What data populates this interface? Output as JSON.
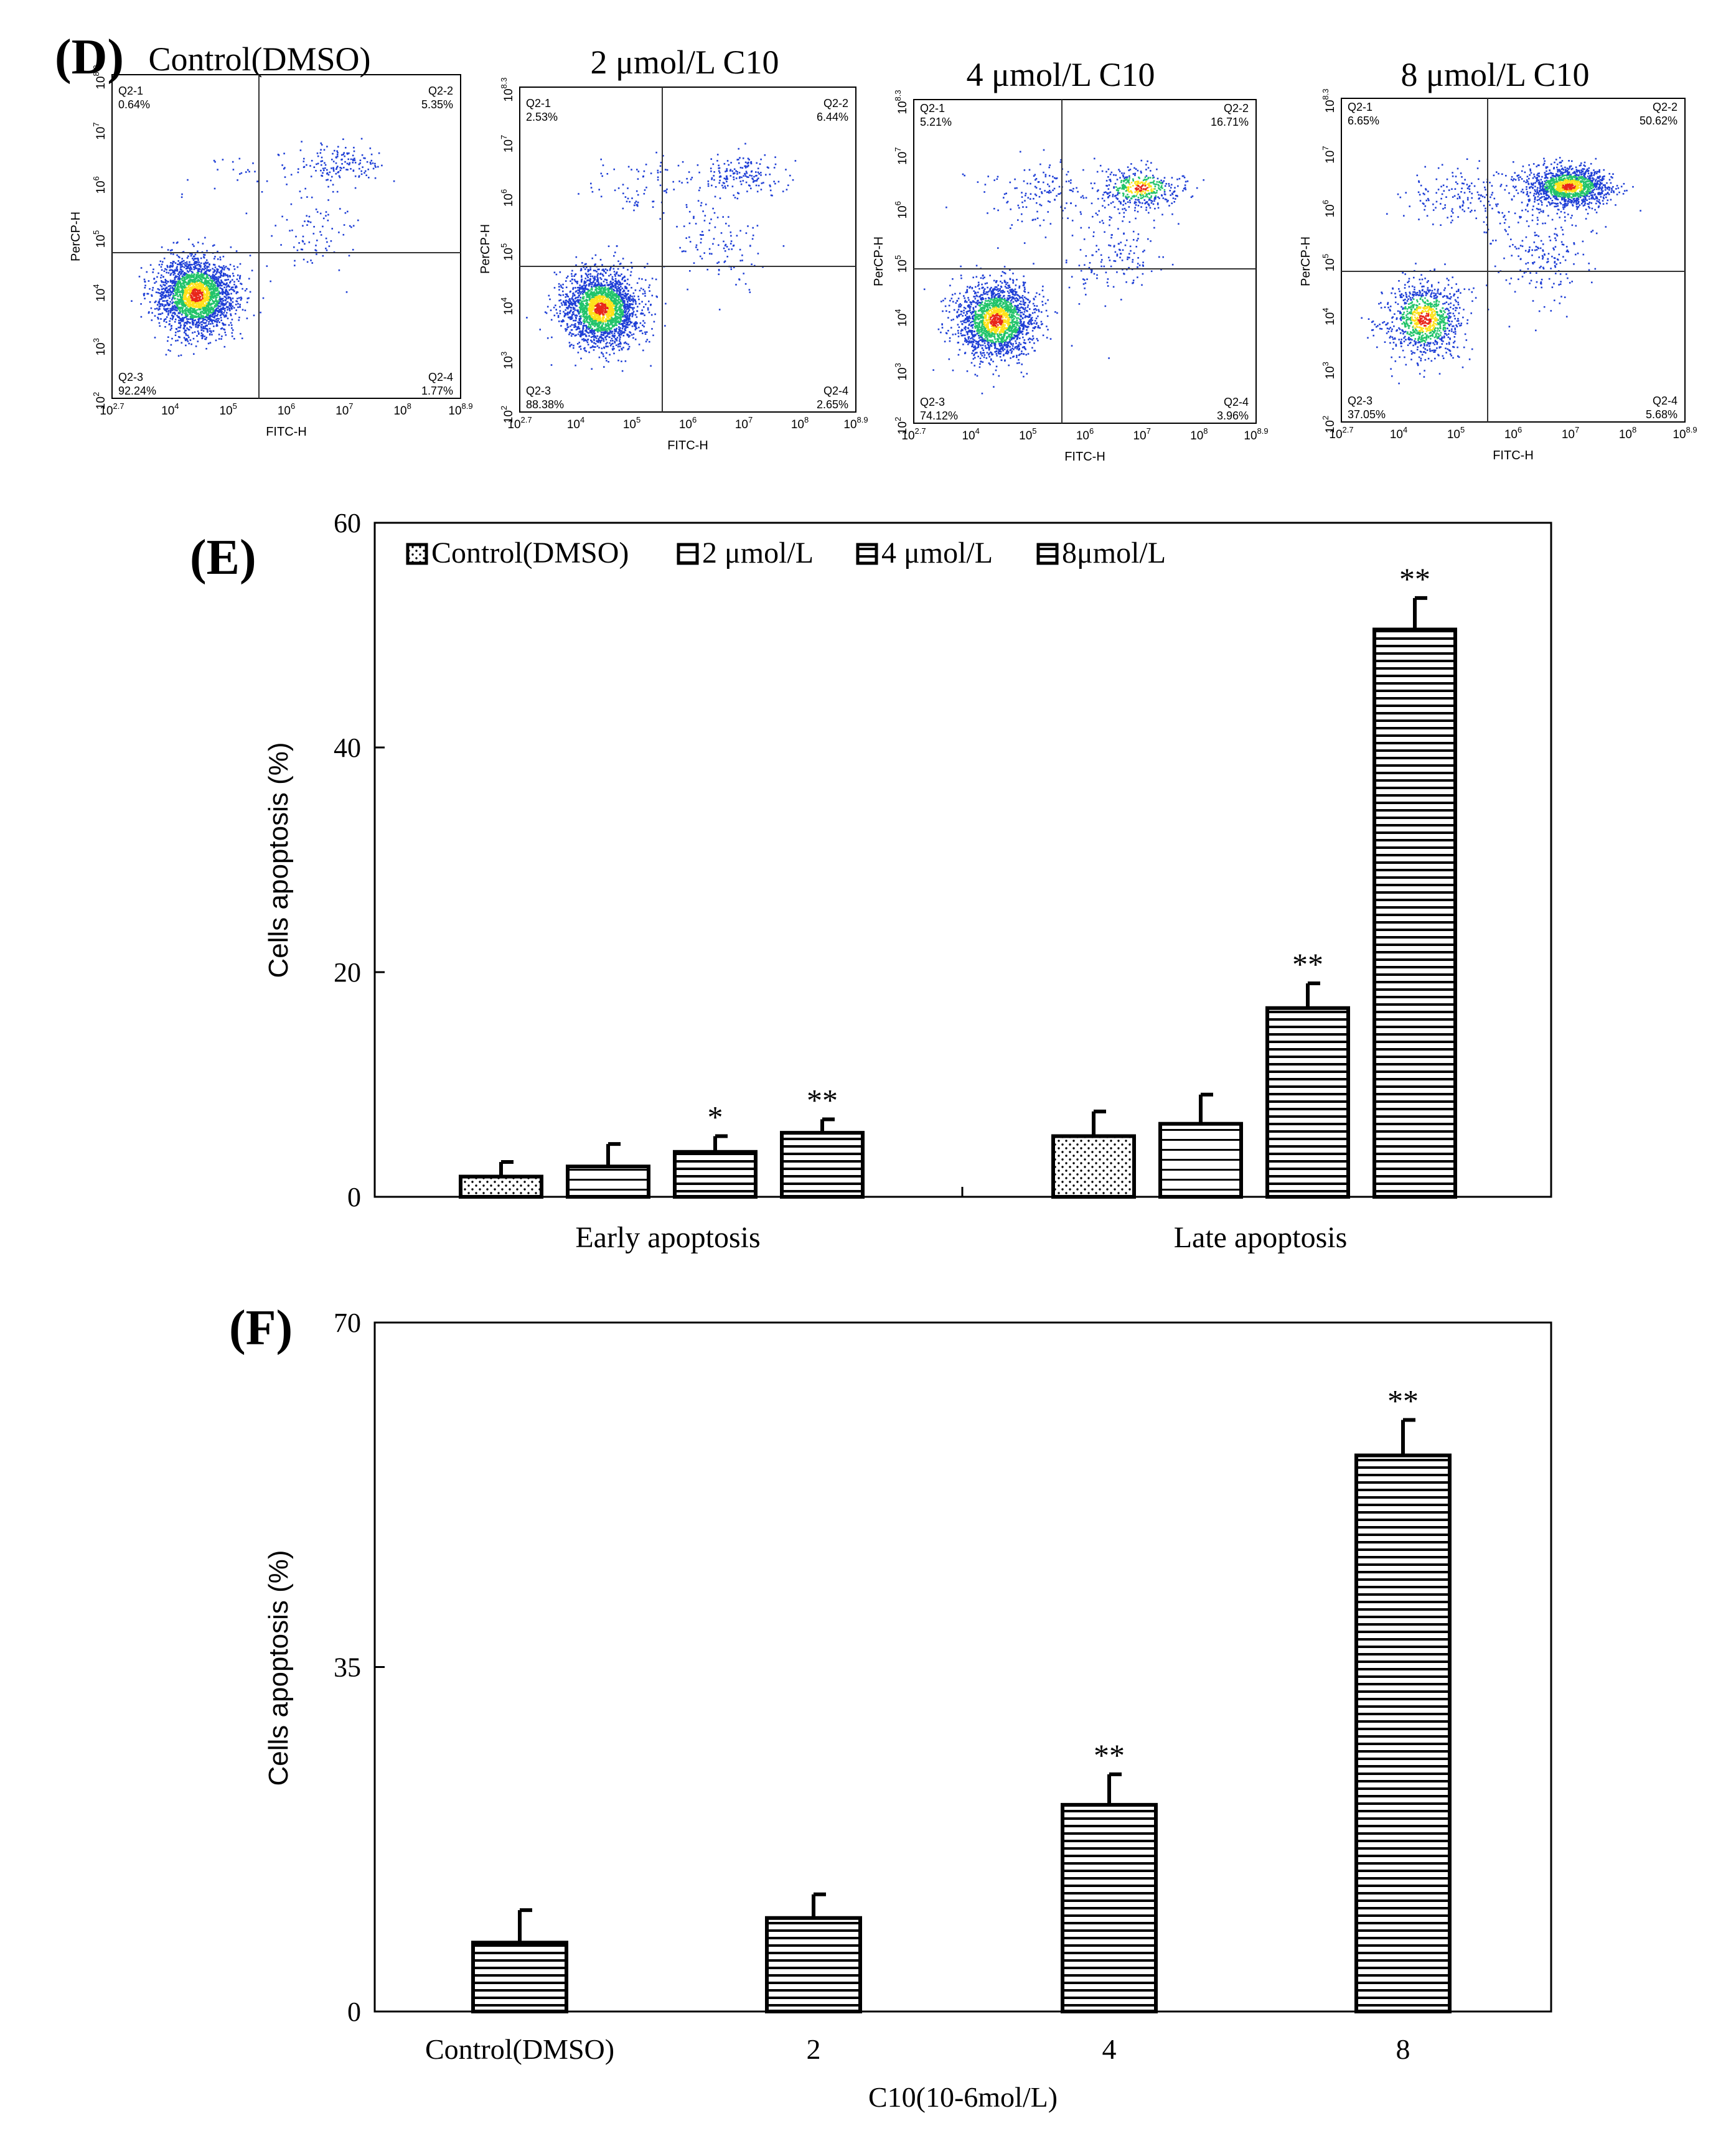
{
  "colors": {
    "axis": "#000000",
    "quadrant": "#333333",
    "dot_low": "#1f3fd6",
    "dot_mid": "#22c46a",
    "dot_high": "#ffe11a",
    "dot_peak": "#e8261a"
  },
  "panel_d": {
    "label": "(D)",
    "x_axis_label": "FITC-H",
    "y_axis_label": "PerCP-H",
    "x_ticks": [
      "10^2.7",
      "10^4",
      "10^5",
      "10^6",
      "10^7",
      "10^8",
      "10^8.9"
    ],
    "y_ticks": [
      "10^2",
      "10^3",
      "10^4",
      "10^5",
      "10^6",
      "10^7",
      "10^8.3"
    ],
    "plots": [
      {
        "title": "Control(DMSO)",
        "q1": "Q2-1",
        "q1_val": "0.64%",
        "q2": "Q2-2",
        "q2_val": "5.35%",
        "q3": "Q2-3",
        "q3_val": "92.24%",
        "q4": "Q2-4",
        "q4_val": "1.77%"
      },
      {
        "title": "2 μmol/L C10",
        "q1": "Q2-1",
        "q1_val": "2.53%",
        "q2": "Q2-2",
        "q2_val": "6.44%",
        "q3": "Q2-3",
        "q3_val": "88.38%",
        "q4": "Q2-4",
        "q4_val": "2.65%"
      },
      {
        "title": "4 μmol/L C10",
        "q1": "Q2-1",
        "q1_val": "5.21%",
        "q2": "Q2-2",
        "q2_val": "16.71%",
        "q3": "Q2-3",
        "q3_val": "74.12%",
        "q4": "Q2-4",
        "q4_val": "3.96%"
      },
      {
        "title": "8 μmol/L C10",
        "q1": "Q2-1",
        "q1_val": "6.65%",
        "q2": "Q2-2",
        "q2_val": "50.62%",
        "q3": "Q2-3",
        "q3_val": "37.05%",
        "q4": "Q2-4",
        "q4_val": "5.68%"
      }
    ]
  },
  "chart_data": [
    {
      "panel": "(E)",
      "type": "bar",
      "categories": [
        "Early apoptosis",
        "Late apoptosis"
      ],
      "series": [
        {
          "name": "Control(DMSO)",
          "pattern": "dots",
          "values": [
            1.8,
            5.4
          ],
          "errors": [
            1.3,
            2.2
          ],
          "marks": [
            "",
            ""
          ]
        },
        {
          "name": "2 μmol/L",
          "pattern": "hlines-wide",
          "values": [
            2.7,
            6.5
          ],
          "errors": [
            2.0,
            2.6
          ],
          "marks": [
            "",
            ""
          ]
        },
        {
          "name": "4 μmol/L",
          "pattern": "hlines",
          "values": [
            4.0,
            16.8
          ],
          "errors": [
            1.4,
            2.2
          ],
          "marks": [
            "*",
            "**"
          ]
        },
        {
          "name": "8μmol/L",
          "pattern": "hlines",
          "values": [
            5.7,
            50.5
          ],
          "errors": [
            1.2,
            2.8
          ],
          "marks": [
            "**",
            "**"
          ]
        }
      ],
      "ylabel": "Cells apoptosis  (%)",
      "xlabel": "",
      "ylim": [
        0,
        60
      ],
      "yticks": [
        0,
        20,
        40,
        60
      ],
      "legend": "top-left inside"
    },
    {
      "panel": "(F)",
      "type": "bar",
      "categories": [
        "Control(DMSO)",
        "2",
        "4",
        "8"
      ],
      "values": [
        7.0,
        9.5,
        21.0,
        56.5
      ],
      "errors": [
        3.3,
        2.4,
        3.1,
        3.6
      ],
      "marks": [
        "",
        "",
        "**",
        "**"
      ],
      "ylabel": "Cells apoptosis  (%)",
      "xlabel": "C10(10-6mol/L)",
      "ylim": [
        0,
        70
      ],
      "yticks": [
        0,
        35,
        70
      ]
    }
  ]
}
